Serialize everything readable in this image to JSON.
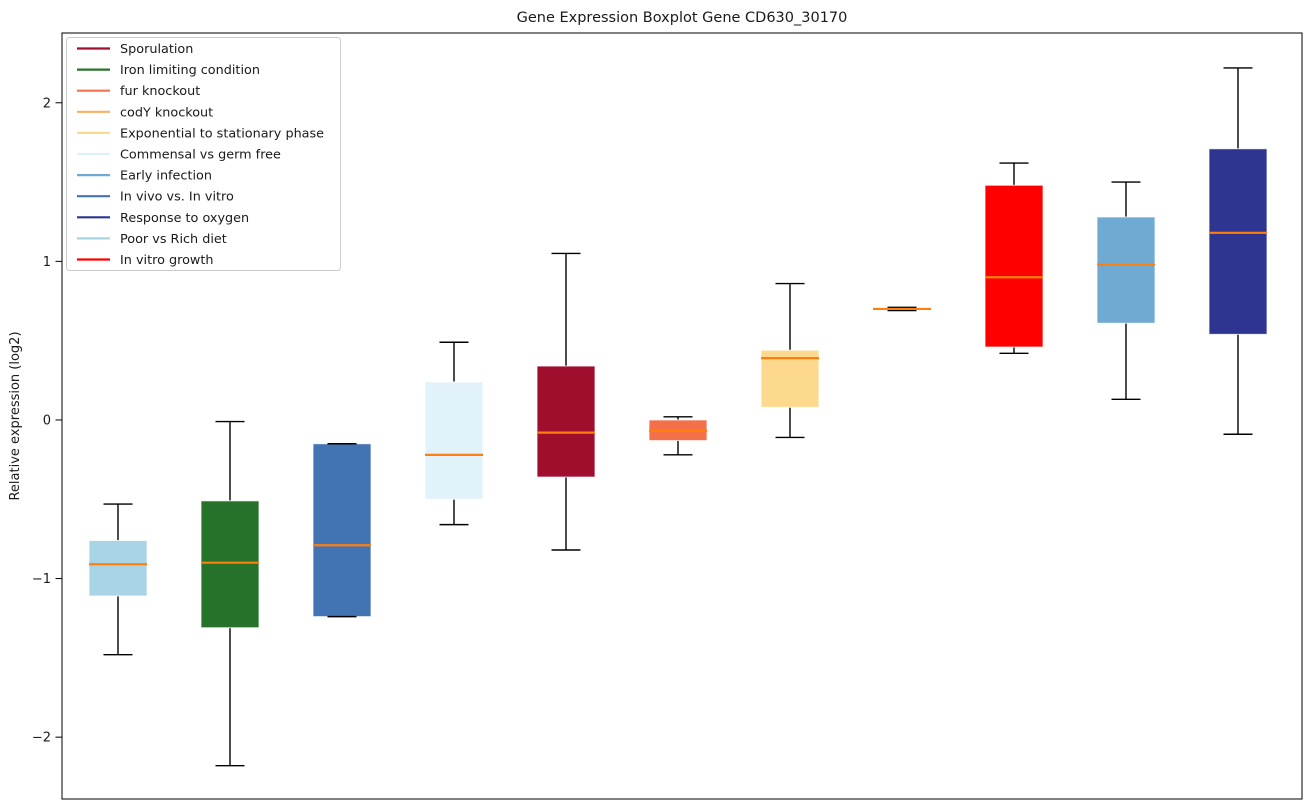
{
  "chart_data": {
    "type": "boxplot",
    "title": "Gene Expression Boxplot Gene CD630_30170",
    "xlabel": "",
    "ylabel": "Relative expression (log2)",
    "ylim": [
      -2.39,
      2.44
    ],
    "grid": false,
    "legend_position": "upper-left",
    "yticks": [
      {
        "value": -2,
        "label": "−2"
      },
      {
        "value": -1,
        "label": "−1"
      },
      {
        "value": 0,
        "label": "0"
      },
      {
        "value": 1,
        "label": "1"
      },
      {
        "value": 2,
        "label": "2"
      }
    ],
    "style": {
      "median_color": "#ff7f0e",
      "whisker_color": "#000000",
      "box_edge_color": "rgba(255,255,255,0.75)",
      "spine_color": "#000000",
      "legend_border_color": "#cccccc",
      "legend_fill": "#ffffff"
    },
    "legend_entries": [
      {
        "label": "Sporulation",
        "color": "#a00e2e"
      },
      {
        "label": "Iron limiting condition",
        "color": "#26722a"
      },
      {
        "label": "fur knockout",
        "color": "#f3704a"
      },
      {
        "label": "codY knockout",
        "color": "#fcaf63"
      },
      {
        "label": "Exponential to stationary phase",
        "color": "#fcd98c"
      },
      {
        "label": "Commensal vs germ free",
        "color": "#e0f0f8"
      },
      {
        "label": "Early infection",
        "color": "#70a9d1"
      },
      {
        "label": "In vivo vs. In vitro",
        "color": "#4273b3"
      },
      {
        "label": "Response to oxygen",
        "color": "#2d3590"
      },
      {
        "label": "Poor vs Rich diet",
        "color": "#a9d4e5"
      },
      {
        "label": "In vitro growth",
        "color": "#fe0000"
      }
    ],
    "boxes": [
      {
        "label": "Poor vs Rich diet",
        "color": "#a9d4e5",
        "whisker_low": -1.48,
        "q1": -1.11,
        "median": -0.91,
        "q3": -0.76,
        "whisker_high": -0.53
      },
      {
        "label": "Iron limiting condition",
        "color": "#26722a",
        "whisker_low": -2.18,
        "q1": -1.31,
        "median": -0.9,
        "q3": -0.51,
        "whisker_high": -0.01
      },
      {
        "label": "In vivo vs. In vitro",
        "color": "#4273b3",
        "whisker_low": -1.24,
        "q1": -1.24,
        "median": -0.79,
        "q3": -0.15,
        "whisker_high": -0.15
      },
      {
        "label": "Commensal vs germ free",
        "color": "#e2f2fa",
        "whisker_low": -0.66,
        "q1": -0.5,
        "median": -0.22,
        "q3": 0.24,
        "whisker_high": 0.49
      },
      {
        "label": "Sporulation",
        "color": "#a00e2e",
        "whisker_low": -0.82,
        "q1": -0.36,
        "median": -0.08,
        "q3": 0.34,
        "whisker_high": 1.05
      },
      {
        "label": "fur knockout",
        "color": "#f3704a",
        "whisker_low": -0.22,
        "q1": -0.13,
        "median": -0.07,
        "q3": 0.0,
        "whisker_high": 0.02
      },
      {
        "label": "Exponential to stationary phase",
        "color": "#fcd98c",
        "whisker_low": -0.11,
        "q1": 0.08,
        "median": 0.39,
        "q3": 0.44,
        "whisker_high": 0.86
      },
      {
        "label": "codY knockout",
        "color": "#fcaf63",
        "whisker_low": 0.69,
        "q1": 0.695,
        "median": 0.7,
        "q3": 0.705,
        "whisker_high": 0.71
      },
      {
        "label": "In vitro growth",
        "color": "#fe0000",
        "whisker_low": 0.42,
        "q1": 0.46,
        "median": 0.9,
        "q3": 1.48,
        "whisker_high": 1.62
      },
      {
        "label": "Early infection",
        "color": "#70a9d1",
        "whisker_low": 0.13,
        "q1": 0.61,
        "median": 0.98,
        "q3": 1.28,
        "whisker_high": 1.5
      },
      {
        "label": "Response to oxygen",
        "color": "#2d3590",
        "whisker_low": -0.09,
        "q1": 0.54,
        "median": 1.18,
        "q3": 1.71,
        "whisker_high": 2.22
      }
    ]
  }
}
